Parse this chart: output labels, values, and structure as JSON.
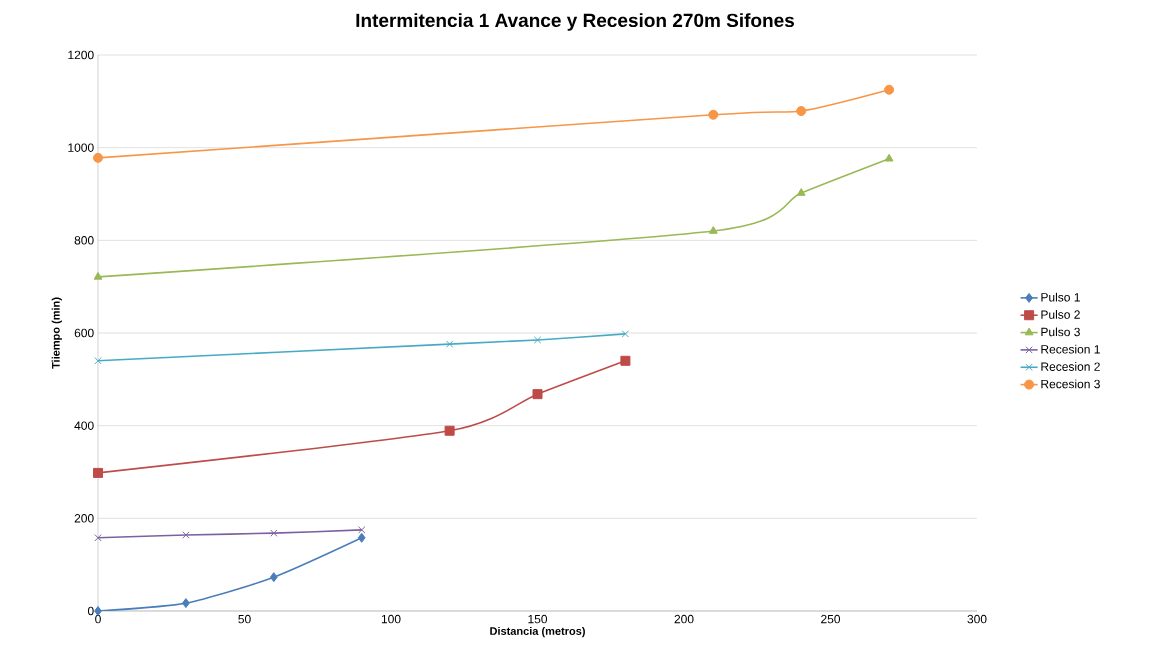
{
  "chart_data": {
    "type": "line",
    "title": "Intermitencia 1 Avance y Recesion 270m Sifones",
    "xlabel": "Distancia (metros)",
    "ylabel": "Tiiempo (min)",
    "xlim": [
      0,
      300
    ],
    "xticks": [
      0,
      50,
      100,
      150,
      200,
      250,
      300
    ],
    "ylim": [
      0,
      1200
    ],
    "yticks": [
      0,
      200,
      400,
      600,
      800,
      1000,
      1200
    ],
    "grid": "y",
    "legend": "right",
    "series": [
      {
        "name": "Pulso 1",
        "color": "#4a7ebb",
        "marker": "diamond",
        "x": [
          0,
          30,
          60,
          90
        ],
        "values": [
          0,
          17,
          73,
          158
        ]
      },
      {
        "name": "Pulso 2",
        "color": "#be4b48",
        "marker": "square",
        "x": [
          0,
          120,
          150,
          180
        ],
        "values": [
          298,
          389,
          468,
          540
        ]
      },
      {
        "name": "Pulso 3",
        "color": "#98b954",
        "marker": "triangle",
        "x": [
          0,
          210,
          240,
          270
        ],
        "values": [
          721,
          820,
          902,
          976
        ]
      },
      {
        "name": "Recesion 1",
        "color": "#7d60a0",
        "marker": "cross",
        "x": [
          0,
          30,
          60,
          90
        ],
        "values": [
          158,
          164,
          168,
          175
        ]
      },
      {
        "name": "Recesion 2",
        "color": "#46aac5",
        "marker": "cross",
        "x": [
          0,
          120,
          150,
          180
        ],
        "values": [
          540,
          576,
          585,
          598
        ]
      },
      {
        "name": "Recesion 3",
        "color": "#f79646",
        "marker": "circle",
        "x": [
          0,
          210,
          240,
          270
        ],
        "values": [
          978,
          1071,
          1079,
          1125
        ]
      }
    ]
  }
}
